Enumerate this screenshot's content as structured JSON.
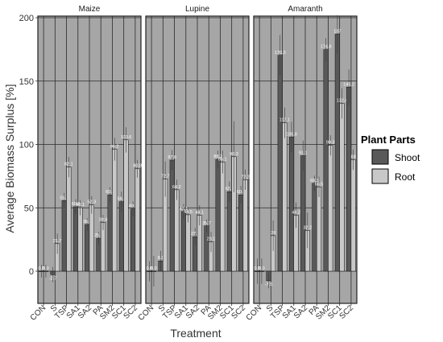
{
  "chart_data": {
    "type": "bar",
    "xlabel": "Treatment",
    "ylabel": "Average Biomass Surplus [%]",
    "ylim": [
      -25,
      200
    ],
    "yticks": [
      0,
      50,
      100,
      150,
      200
    ],
    "categories": [
      "CON",
      "S",
      "TSP",
      "SA1",
      "SA2",
      "PA",
      "SM2",
      "SC1",
      "SC2"
    ],
    "legend": {
      "title": "Plant Parts",
      "position": "right",
      "entries": [
        {
          "name": "Shoot",
          "color": "#595959"
        },
        {
          "name": "Root",
          "color": "#c8c8c8"
        }
      ]
    },
    "panel_background": "#a6a6a6",
    "grid": true,
    "panels": [
      {
        "name": "Maize",
        "series": [
          {
            "name": "Shoot",
            "values": [
              0.0,
              -2.7,
              55.7,
              50.8,
              36.8,
              25.9,
              60.2,
              54.8,
              49.1
            ],
            "errors": [
              5,
              6,
              6,
              6,
              5,
              5,
              6,
              8,
              6
            ],
            "labels": [
              "0.0",
              "-2.7",
              "55.7",
              "50.8",
              "36.8",
              "25.9",
              "60.2",
              "54.8",
              "49.1"
            ]
          },
          {
            "name": "Root",
            "values": [
              0.0,
              21.7,
              82.1,
              50.1,
              52.3,
              38.4,
              96.2,
              103.6,
              80.8
            ],
            "errors": [
              5,
              8,
              8,
              6,
              7,
              6,
              9,
              10,
              7
            ],
            "labels": [
              "0.0",
              "21.7",
              "82.1",
              "50.1",
              "52.3",
              "38.4",
              "96.2",
              "103.6",
              "80.8"
            ]
          }
        ]
      },
      {
        "name": "Lupine",
        "series": [
          {
            "name": "Shoot",
            "values": [
              0.0,
              8.1,
              87.6,
              47.1,
              27.2,
              35.7,
              88.2,
              62.7,
              60.2
            ],
            "errors": [
              8,
              8,
              8,
              6,
              7,
              5,
              7,
              8,
              7
            ],
            "labels": [
              "0.0",
              "8.1",
              "87.6",
              "47.1",
              "27.2",
              "35.7",
              "88.2",
              "62.7",
              "60.2"
            ]
          },
          {
            "name": "Root",
            "values": [
              0.0,
              72.7,
              64.2,
              44.5,
              44.1,
              23.1,
              86.1,
              90.3,
              72.2
            ],
            "errors": [
              12,
              14,
              8,
              6,
              8,
              8,
              9,
              28,
              8
            ],
            "labels": [
              "0.0",
              "72.7",
              "64.2",
              "44.5",
              "44.1",
              "23.1",
              "86.1",
              "90.3",
              "72.2"
            ]
          }
        ]
      },
      {
        "name": "Amaranth",
        "series": [
          {
            "name": "Shoot",
            "values": [
              0.0,
              -7.5,
              170.3,
              105.8,
              91.1,
              69.3,
              174.8,
              187.0,
              145.2
            ],
            "errors": [
              10,
              6,
              16,
              12,
              12,
              6,
              9,
              15,
              14
            ],
            "labels": [
              "0.0",
              "-7.5",
              "170.3",
              "105.8",
              "91.1",
              "69.3",
              "174.8",
              "187",
              "145.2"
            ]
          },
          {
            "name": "Root",
            "values": [
              0.0,
              28.0,
              117.1,
              44.2,
              32.2,
              66.5,
              99.3,
              132.4,
              88.0
            ],
            "errors": [
              10,
              12,
              12,
              10,
              14,
              8,
              8,
              12,
              8
            ],
            "labels": [
              "0.0",
              "28",
              "117.1",
              "44.2",
              "32.2",
              "66.5",
              "99.3",
              "132.4",
              "88"
            ]
          }
        ]
      }
    ]
  }
}
